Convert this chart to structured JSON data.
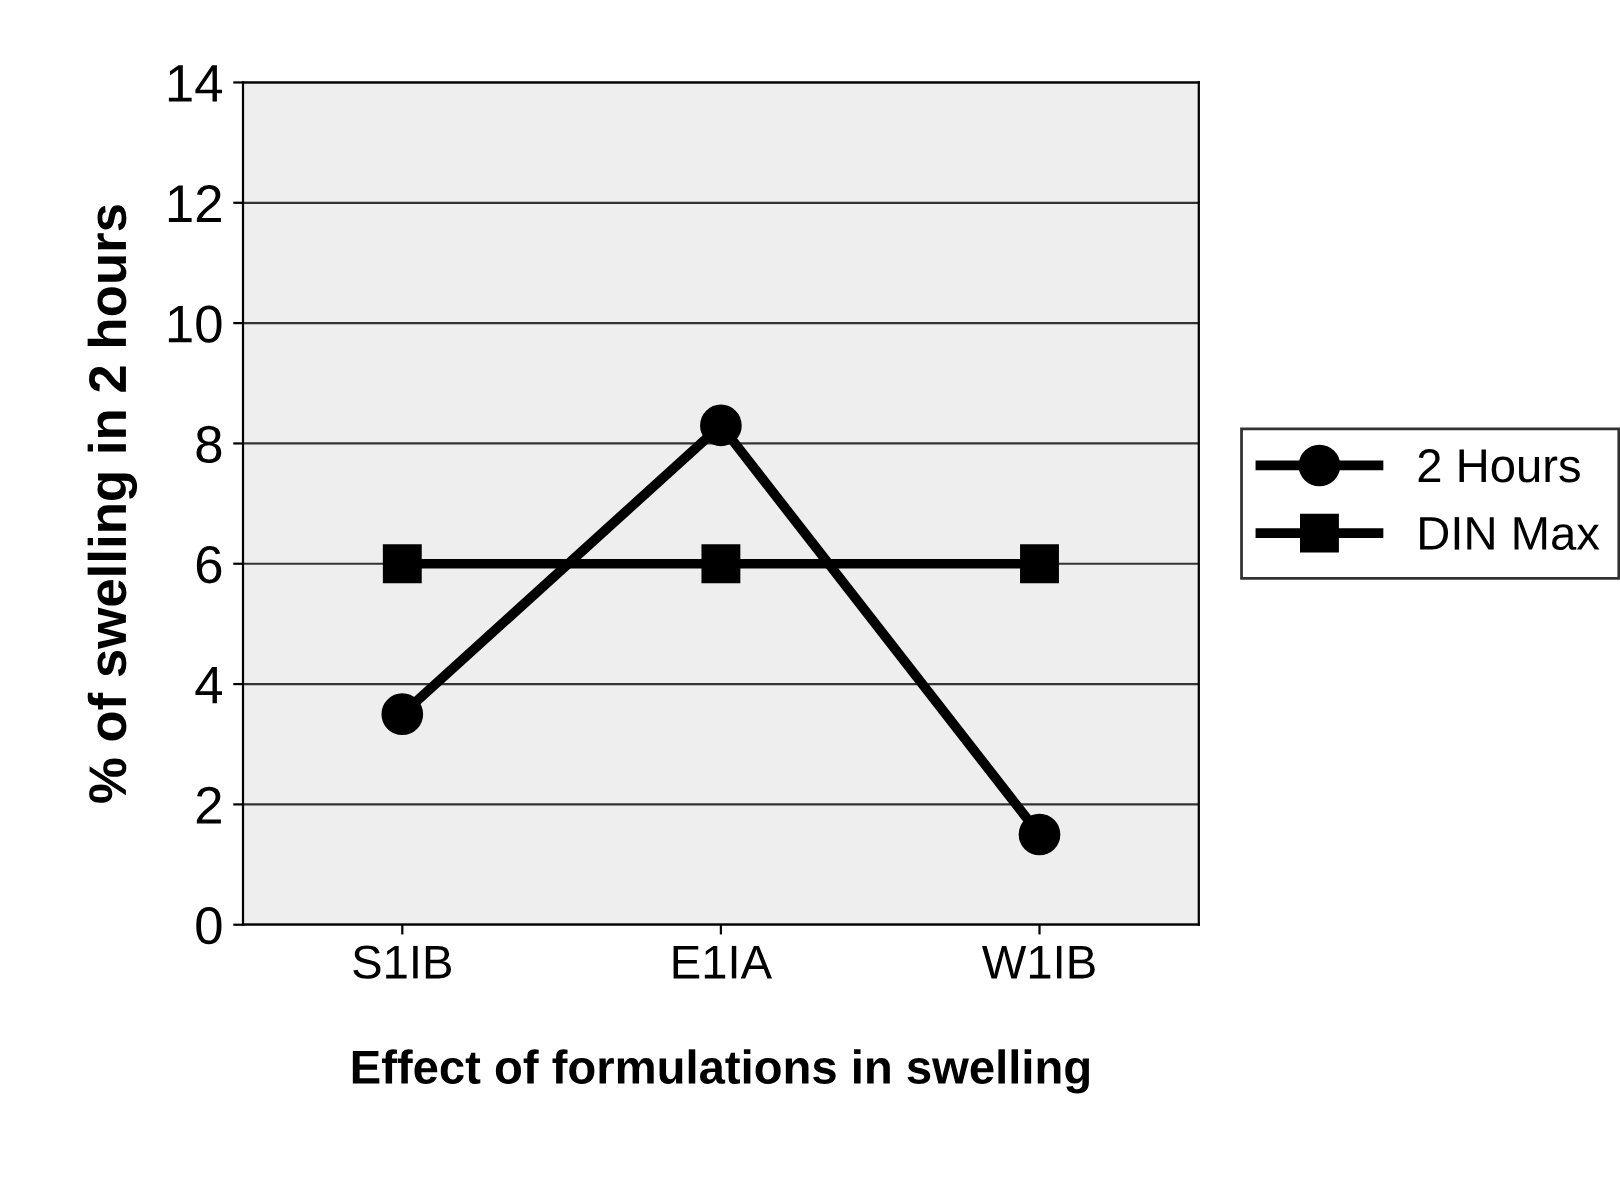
{
  "chart_data": {
    "type": "line",
    "xlabel": "Effect of formulations in swelling",
    "ylabel": "% of swelling in 2 hours",
    "categories": [
      "S1IB",
      "E1IA",
      "W1IB"
    ],
    "series": [
      {
        "name": "2 Hours",
        "color": "#000000",
        "values": [
          3.5,
          8.3,
          1.5
        ],
        "marker": "circle"
      },
      {
        "name": "DIN Max",
        "color": "#000000",
        "values": [
          6,
          6,
          6
        ],
        "marker": "square"
      }
    ],
    "ylim": [
      0,
      14
    ],
    "yticks": [
      0,
      2,
      4,
      6,
      8,
      10,
      12,
      14
    ],
    "grid": "y",
    "legend": "right",
    "line_style": "solid"
  }
}
